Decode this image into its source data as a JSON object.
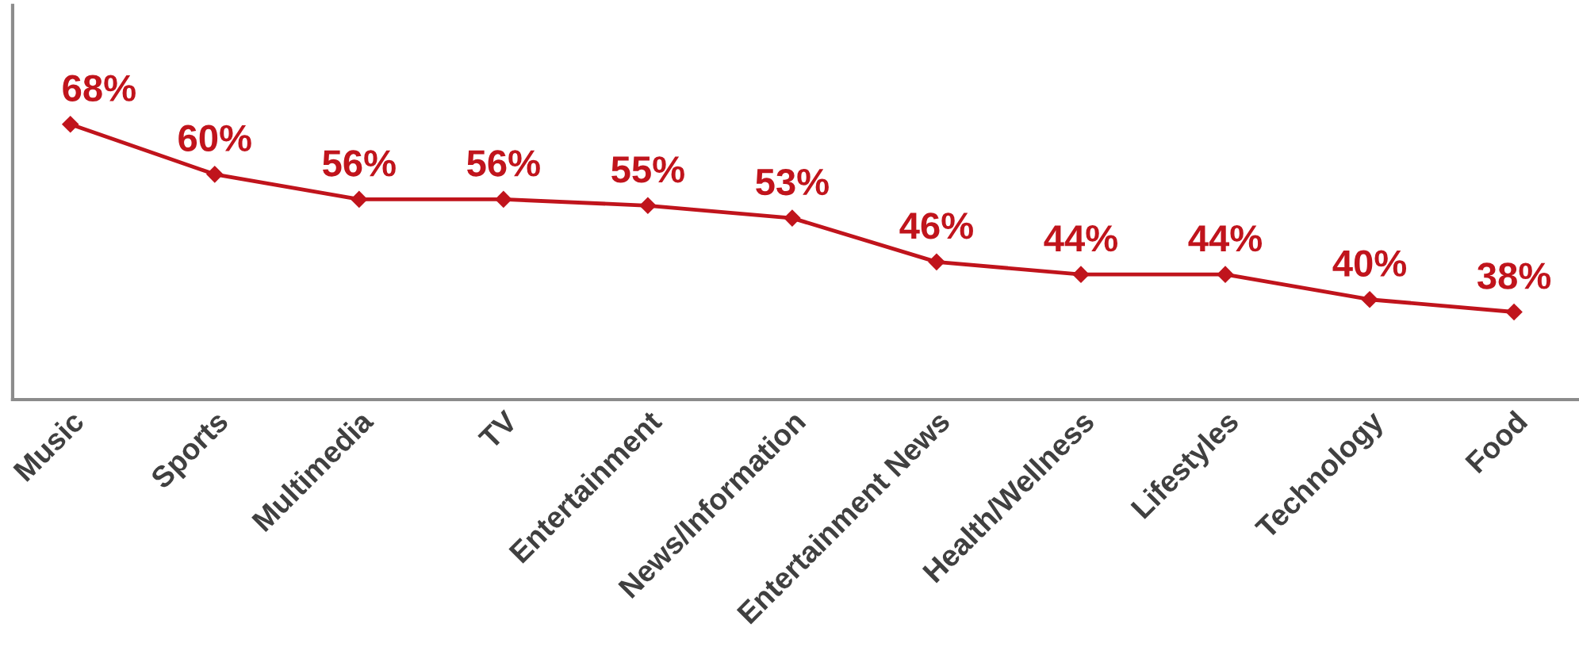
{
  "chart_data": {
    "type": "line",
    "categories": [
      "Music",
      "Sports",
      "Multimedia",
      "TV",
      "Entertainment",
      "News/Information",
      "Entertainment News",
      "Health/Wellness",
      "Lifestyles",
      "Technology",
      "Food"
    ],
    "series": [
      {
        "color": "#c0141c",
        "values": [
          68,
          60,
          56,
          56,
          55,
          53,
          46,
          44,
          44,
          40,
          38
        ],
        "value_labels": [
          "68%",
          "60%",
          "56%",
          "56%",
          "55%",
          "53%",
          "46%",
          "44%",
          "44%",
          "40%",
          "38%"
        ]
      }
    ],
    "ylim": [
      24,
      87
    ],
    "tick_labels": "x",
    "marker": "diamond",
    "line_style": "solid",
    "grid": false,
    "legend": false
  }
}
